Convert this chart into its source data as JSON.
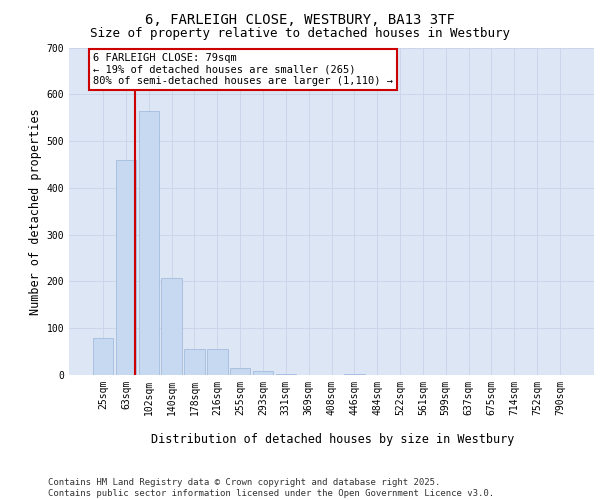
{
  "title_line1": "6, FARLEIGH CLOSE, WESTBURY, BA13 3TF",
  "title_line2": "Size of property relative to detached houses in Westbury",
  "xlabel": "Distribution of detached houses by size in Westbury",
  "ylabel": "Number of detached properties",
  "categories": [
    "25sqm",
    "63sqm",
    "102sqm",
    "140sqm",
    "178sqm",
    "216sqm",
    "255sqm",
    "293sqm",
    "331sqm",
    "369sqm",
    "408sqm",
    "446sqm",
    "484sqm",
    "522sqm",
    "561sqm",
    "599sqm",
    "637sqm",
    "675sqm",
    "714sqm",
    "752sqm",
    "790sqm"
  ],
  "values": [
    80,
    460,
    565,
    207,
    55,
    55,
    15,
    8,
    2,
    0,
    0,
    2,
    0,
    0,
    0,
    0,
    0,
    0,
    0,
    0,
    0
  ],
  "bar_color": "#c6d9f1",
  "bar_edge_color": "#9ab5d9",
  "grid_color": "#c8d4e8",
  "background_color": "#dce6f5",
  "vline_color": "#cc0000",
  "annotation_text": "6 FARLEIGH CLOSE: 79sqm\n← 19% of detached houses are smaller (265)\n80% of semi-detached houses are larger (1,110) →",
  "annotation_box_color": "#cc0000",
  "ylim": [
    0,
    700
  ],
  "yticks": [
    0,
    100,
    200,
    300,
    400,
    500,
    600,
    700
  ],
  "footnote": "Contains HM Land Registry data © Crown copyright and database right 2025.\nContains public sector information licensed under the Open Government Licence v3.0.",
  "title_fontsize": 10,
  "subtitle_fontsize": 9,
  "axis_label_fontsize": 8.5,
  "tick_fontsize": 7,
  "annotation_fontsize": 7.5,
  "footnote_fontsize": 6.5
}
